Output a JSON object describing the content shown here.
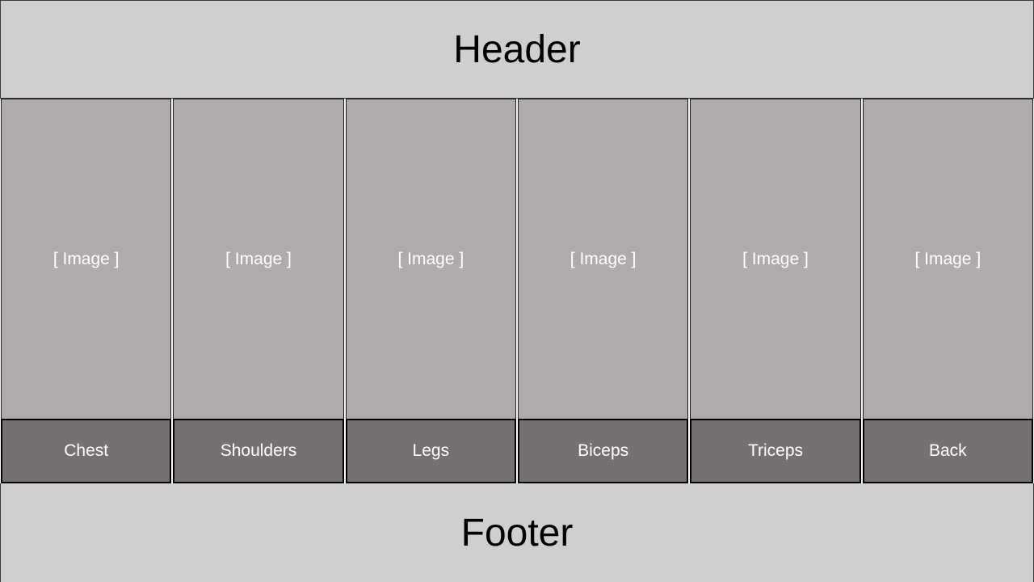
{
  "header": {
    "title": "Header"
  },
  "footer": {
    "title": "Footer"
  },
  "columns": [
    {
      "image_placeholder": "[ Image ]",
      "label": "Chest"
    },
    {
      "image_placeholder": "[ Image ]",
      "label": "Shoulders"
    },
    {
      "image_placeholder": "[ Image ]",
      "label": "Legs"
    },
    {
      "image_placeholder": "[ Image ]",
      "label": "Biceps"
    },
    {
      "image_placeholder": "[ Image ]",
      "label": "Triceps"
    },
    {
      "image_placeholder": "[ Image ]",
      "label": "Back"
    }
  ],
  "colors": {
    "header_footer_bg": "#d0cecf",
    "image_bg": "#afabaa",
    "button_bg": "#767171",
    "text_light": "#ffffff",
    "text_dark": "#000000"
  }
}
